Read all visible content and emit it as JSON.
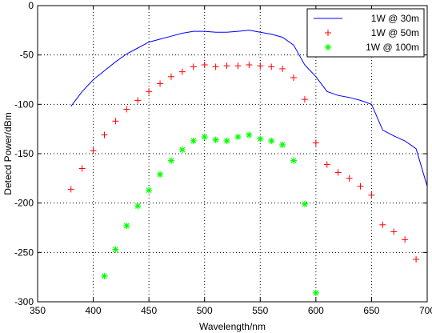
{
  "chart_data": {
    "type": "line",
    "title": "",
    "xlabel": "Wavelength/nm",
    "ylabel": "Detecd Power/dBm",
    "xlim": [
      350,
      700
    ],
    "ylim": [
      -300,
      0
    ],
    "xticks": [
      350,
      400,
      450,
      500,
      550,
      600,
      650,
      700
    ],
    "yticks": [
      -300,
      -250,
      -200,
      -150,
      -100,
      -50,
      0
    ],
    "grid": true,
    "legend_position": "top-right",
    "series": [
      {
        "name": "1W @ 30m",
        "style": "line",
        "color": "#0000ff",
        "x": [
          380,
          390,
          400,
          410,
          420,
          430,
          440,
          450,
          460,
          470,
          480,
          490,
          500,
          510,
          520,
          530,
          540,
          550,
          560,
          570,
          580,
          590,
          600,
          610,
          620,
          630,
          640,
          650,
          660,
          670,
          680,
          690,
          700
        ],
        "y": [
          -102,
          -87,
          -75,
          -66,
          -57,
          -49,
          -43,
          -37,
          -34,
          -31,
          -28,
          -26,
          -26,
          -27,
          -27,
          -26,
          -25,
          -27,
          -29,
          -32,
          -40,
          -60,
          -72,
          -87,
          -91,
          -93,
          -96,
          -100,
          -126,
          -132,
          -137,
          -145,
          -183
        ]
      },
      {
        "name": "1W @ 50m",
        "style": "marker",
        "marker": "+",
        "color": "#ff0000",
        "x": [
          380,
          390,
          400,
          410,
          420,
          430,
          440,
          450,
          460,
          470,
          480,
          490,
          500,
          510,
          520,
          530,
          540,
          550,
          560,
          570,
          580,
          590,
          600,
          610,
          620,
          630,
          640,
          650,
          660,
          670,
          680,
          690
        ],
        "y": [
          -186,
          -165,
          -147,
          -131,
          -117,
          -105,
          -96,
          -87,
          -79,
          -72,
          -67,
          -62,
          -60,
          -62,
          -61,
          -61,
          -60,
          -61,
          -62,
          -64,
          -73,
          -95,
          -139,
          -161,
          -169,
          -175,
          -183,
          -192,
          -222,
          -229,
          -237,
          -257
        ]
      },
      {
        "name": "1W @ 100m",
        "style": "marker",
        "marker": "*",
        "color": "#00ff00",
        "x": [
          410,
          420,
          430,
          440,
          450,
          460,
          470,
          480,
          490,
          500,
          510,
          520,
          530,
          540,
          550,
          560,
          570,
          580,
          590,
          600
        ],
        "y": [
          -274,
          -247,
          -223,
          -203,
          -187,
          -171,
          -157,
          -146,
          -137,
          -133,
          -136,
          -137,
          -133,
          -131,
          -135,
          -137,
          -141,
          -157,
          -201,
          -291
        ]
      }
    ]
  }
}
